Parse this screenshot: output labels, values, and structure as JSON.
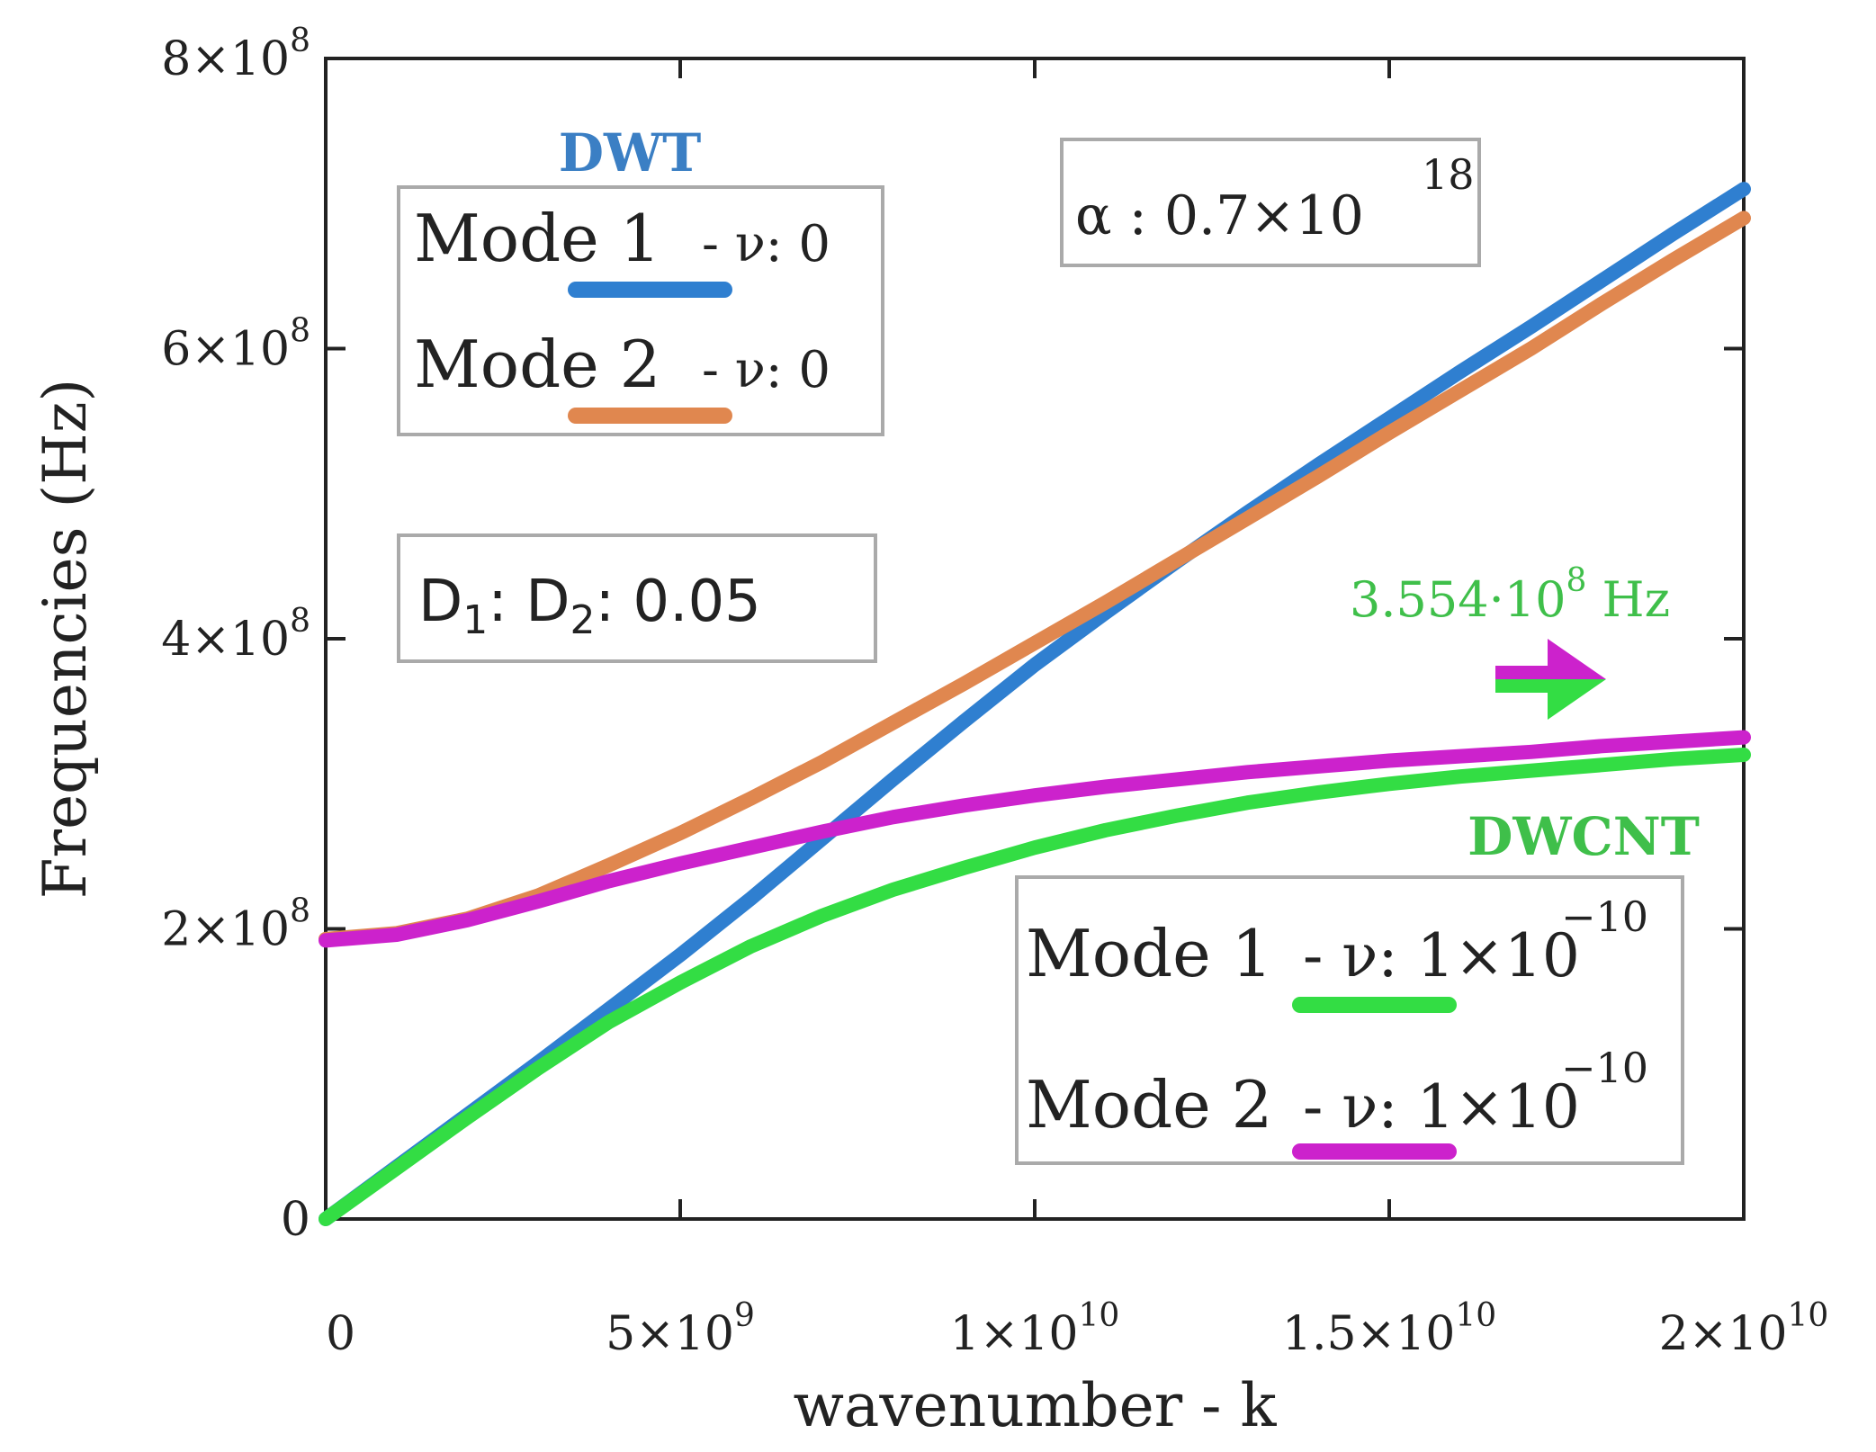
{
  "chart_data": {
    "type": "line",
    "xlabel": "wavenumber - k",
    "ylabel": "Frequencies (Hz)",
    "xlim": [
      0,
      20000000000
    ],
    "ylim": [
      0,
      800000000
    ],
    "x_ticks": [
      {
        "value": 0,
        "mantissa": "0",
        "exp": ""
      },
      {
        "value": 5000000000,
        "mantissa": "5×10",
        "exp": "9"
      },
      {
        "value": 10000000000,
        "mantissa": "1×10",
        "exp": "10"
      },
      {
        "value": 15000000000,
        "mantissa": "1.5×10",
        "exp": "10"
      },
      {
        "value": 20000000000,
        "mantissa": "2×10",
        "exp": "10"
      }
    ],
    "y_ticks": [
      {
        "value": 0,
        "mantissa": "0",
        "exp": ""
      },
      {
        "value": 200000000,
        "mantissa": "2×10",
        "exp": "8"
      },
      {
        "value": 400000000,
        "mantissa": "4×10",
        "exp": "8"
      },
      {
        "value": 600000000,
        "mantissa": "6×10",
        "exp": "8"
      },
      {
        "value": 800000000,
        "mantissa": "8×10",
        "exp": "8"
      }
    ],
    "x": [
      0,
      1000000000,
      2000000000,
      3000000000,
      4000000000,
      5000000000,
      6000000000,
      7000000000,
      8000000000,
      9000000000,
      10000000000,
      11000000000,
      12000000000,
      13000000000,
      14000000000,
      15000000000,
      16000000000,
      17000000000,
      18000000000,
      19000000000,
      20000000000
    ],
    "series": [
      {
        "name": "DWT Mode 1 - ν: 0",
        "color": "#2f7fd0",
        "values": [
          0,
          36000000,
          72000000,
          108000000,
          145000000,
          182000000,
          221000000,
          262000000,
          303000000,
          343000000,
          382000000,
          418000000,
          453000000,
          487000000,
          520000000,
          552000000,
          584000000,
          615000000,
          647000000,
          679000000,
          710000000
        ]
      },
      {
        "name": "DWT Mode 2 - ν: 0",
        "color": "#e0874f",
        "values": [
          193000000,
          197000000,
          207000000,
          223000000,
          244000000,
          266000000,
          290000000,
          315000000,
          342000000,
          369000000,
          397000000,
          425000000,
          454000000,
          483000000,
          512000000,
          542000000,
          571000000,
          600000000,
          631000000,
          661000000,
          690000000
        ]
      },
      {
        "name": "DWCNT Mode 1 - ν: 1×10^-10",
        "color": "#33dd44",
        "values": [
          0,
          35000000,
          70000000,
          104000000,
          136000000,
          163000000,
          188000000,
          209000000,
          227000000,
          242000000,
          256000000,
          268000000,
          278000000,
          287000000,
          294000000,
          300000000,
          305000000,
          309000000,
          313000000,
          317000000,
          320000000
        ]
      },
      {
        "name": "DWCNT Mode 2 - ν: 1×10^-10",
        "color": "#cc22cc",
        "values": [
          192000000,
          196000000,
          206000000,
          219000000,
          233000000,
          245000000,
          256000000,
          267000000,
          277000000,
          285000000,
          292000000,
          298000000,
          303000000,
          308000000,
          312000000,
          316000000,
          319000000,
          322000000,
          326000000,
          329000000,
          332000000
        ]
      }
    ],
    "annotations": {
      "dwt_title": "DWT",
      "dwt_legend": [
        {
          "label": "Mode 1",
          "nu_text": "- ν: 0",
          "color": "#2f7fd0"
        },
        {
          "label": "Mode 2",
          "nu_text": "- ν: 0",
          "color": "#e0874f"
        }
      ],
      "alpha": {
        "text": "α : 0.7×10",
        "exp": "18"
      },
      "ratio": {
        "d1": "D",
        "sub1": "1",
        "mid": ": D",
        "sub2": "2",
        "rest": ": 0.05"
      },
      "asymptote": {
        "text": "3.554·10",
        "exp": "8",
        "unit": " Hz",
        "value_hz": 355400000
      },
      "dwcnt_title": "DWCNT",
      "dwcnt_legend": [
        {
          "label": "Mode 1",
          "nu_text": "- ν: 1×10",
          "exp": "−10",
          "color": "#33dd44"
        },
        {
          "label": "Mode 2",
          "nu_text": "- ν: 1×10",
          "exp": "−10",
          "color": "#cc22cc"
        }
      ]
    }
  }
}
